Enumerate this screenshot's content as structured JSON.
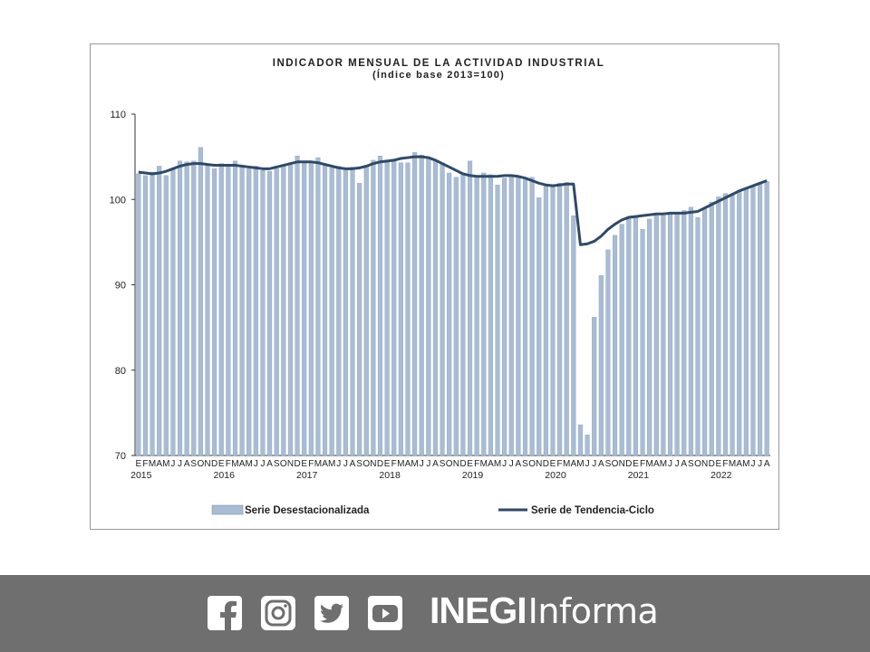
{
  "chart_data": {
    "type": "bar",
    "title": "INDICADOR MENSUAL DE LA ACTIVIDAD INDUSTRIAL",
    "subtitle": "(Índice base 2013=100)",
    "ylim": [
      70,
      110
    ],
    "yticks": [
      70,
      80,
      90,
      100,
      110
    ],
    "month_letters": [
      "E",
      "F",
      "M",
      "A",
      "M",
      "J",
      "J",
      "A",
      "S",
      "O",
      "N",
      "D"
    ],
    "years": [
      "2015",
      "2016",
      "2017",
      "2018",
      "2019",
      "2020",
      "2021",
      "2022"
    ],
    "x_start": "2015-01",
    "x_end": "2022-08",
    "legend_position": "bottom",
    "series": [
      {
        "name": "Serie Desestacionalizada",
        "kind": "bar",
        "color": "#a9bcd4",
        "values": [
          103.0,
          102.8,
          103.2,
          103.9,
          102.8,
          103.5,
          104.5,
          104.4,
          104.5,
          106.1,
          104.1,
          103.6,
          104.2,
          104.1,
          104.5,
          103.7,
          103.6,
          103.9,
          103.4,
          103.3,
          103.6,
          104.0,
          104.3,
          105.1,
          104.5,
          104.3,
          104.9,
          104.1,
          103.7,
          103.9,
          103.5,
          103.8,
          101.9,
          104.0,
          104.6,
          105.1,
          104.6,
          104.7,
          104.3,
          104.3,
          105.5,
          105.2,
          104.8,
          104.6,
          104.3,
          103.1,
          102.6,
          102.9,
          104.5,
          102.8,
          103.1,
          102.9,
          101.7,
          102.5,
          102.9,
          102.6,
          102.3,
          102.6,
          100.2,
          101.6,
          101.6,
          101.9,
          102.0,
          98.1,
          73.6,
          72.4,
          86.2,
          91.1,
          94.1,
          95.8,
          97.1,
          98.0,
          98.1,
          96.5,
          97.7,
          98.1,
          98.1,
          98.2,
          98.3,
          98.7,
          99.1,
          97.9,
          98.9,
          99.7,
          100.3,
          100.7,
          100.6,
          100.9,
          101.2,
          101.5,
          101.8,
          102.1
        ]
      },
      {
        "name": "Serie de Tendencia-Ciclo",
        "kind": "line",
        "color": "#2e4a68",
        "values": [
          103.2,
          103.1,
          103.0,
          103.1,
          103.3,
          103.6,
          103.9,
          104.1,
          104.2,
          104.2,
          104.1,
          104.0,
          104.0,
          104.0,
          104.0,
          103.9,
          103.8,
          103.7,
          103.6,
          103.6,
          103.8,
          104.0,
          104.2,
          104.4,
          104.4,
          104.4,
          104.3,
          104.1,
          103.9,
          103.7,
          103.6,
          103.6,
          103.7,
          103.9,
          104.2,
          104.4,
          104.5,
          104.6,
          104.8,
          104.9,
          105.0,
          105.0,
          104.9,
          104.6,
          104.2,
          103.8,
          103.4,
          103.0,
          102.8,
          102.7,
          102.7,
          102.7,
          102.7,
          102.8,
          102.8,
          102.7,
          102.5,
          102.2,
          101.9,
          101.7,
          101.6,
          101.7,
          101.8,
          101.8,
          94.7,
          94.8,
          95.1,
          95.7,
          96.5,
          97.1,
          97.6,
          97.9,
          98.0,
          98.1,
          98.2,
          98.3,
          98.3,
          98.4,
          98.4,
          98.4,
          98.5,
          98.6,
          99.0,
          99.4,
          99.8,
          100.2,
          100.6,
          101.0,
          101.3,
          101.6,
          101.9,
          102.2
        ]
      }
    ]
  },
  "footer": {
    "background": "#6f6f6f",
    "icons": [
      "facebook-icon",
      "instagram-icon",
      "twitter-icon",
      "youtube-icon"
    ],
    "brand_strong": "INEGI",
    "brand_light": "Informa"
  }
}
